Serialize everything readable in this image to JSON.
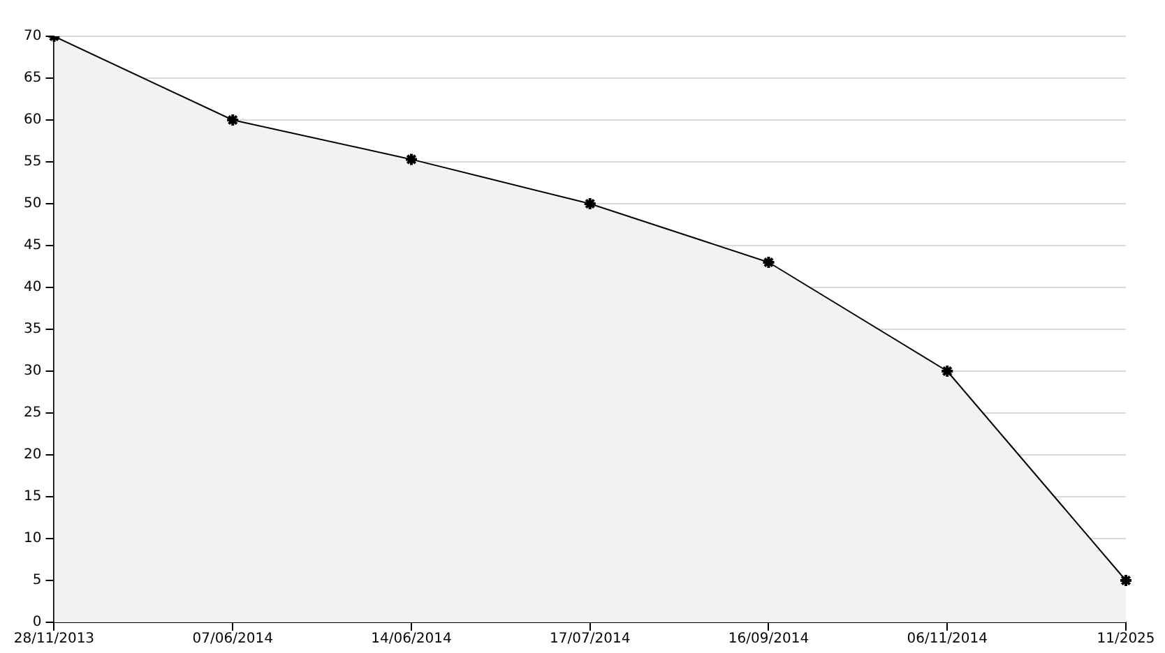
{
  "chart_data": {
    "type": "area",
    "categories": [
      "28/11/2013",
      "07/06/2014",
      "14/06/2014",
      "17/07/2014",
      "16/09/2014",
      "06/11/2014",
      "11/2025"
    ],
    "series": [
      {
        "color": "#000000",
        "values": [
          70,
          60,
          55.3,
          50,
          43,
          30,
          5
        ]
      }
    ],
    "ylim": [
      0,
      70
    ],
    "yticks": [
      0,
      5,
      10,
      15,
      20,
      25,
      30,
      35,
      40,
      45,
      50,
      55,
      60,
      65,
      70
    ],
    "grid": "y",
    "legend": false,
    "marker": "cross",
    "line_style": "solid"
  }
}
